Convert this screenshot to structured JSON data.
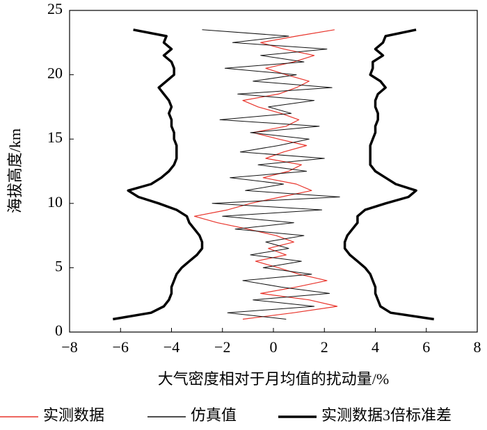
{
  "chart_data": {
    "type": "profile",
    "xlabel": "大气密度相对于月均值的扰动量/%",
    "ylabel": "海拔高度/km",
    "xlim": [
      -8,
      8
    ],
    "xticks": [
      {
        "value": -8,
        "label": "−8"
      },
      {
        "value": -6,
        "label": "−6"
      },
      {
        "value": -4,
        "label": "−4"
      },
      {
        "value": -2,
        "label": "−2"
      },
      0,
      2,
      4,
      6,
      8
    ],
    "ylim": [
      0,
      25
    ],
    "yticks": [
      0,
      5,
      10,
      15,
      20,
      25
    ],
    "y": [
      1,
      1.5,
      2,
      2.5,
      3,
      3.5,
      4,
      4.5,
      5,
      5.5,
      6,
      6.5,
      7,
      7.5,
      8,
      8.5,
      9,
      9.5,
      10,
      10.5,
      11,
      11.5,
      12,
      12.5,
      13,
      13.5,
      14,
      14.5,
      15,
      15.5,
      16,
      16.5,
      17,
      17.5,
      18,
      18.5,
      19,
      19.5,
      20,
      20.5,
      21,
      21.5,
      22,
      22.5,
      23,
      23.5
    ],
    "series": [
      {
        "name": "实测数据",
        "color": "#e8332a",
        "width": 1.2,
        "values": [
          -1.2,
          0.8,
          2.5,
          1.4,
          -0.5,
          0.9,
          2.1,
          1.0,
          0.2,
          -0.7,
          0.5,
          -0.2,
          0.8,
          0.1,
          -1.0,
          -2.2,
          -3.1,
          -1.8,
          -0.9,
          0.3,
          1.5,
          0.9,
          -0.4,
          0.6,
          1.1,
          -0.3,
          0.4,
          1.3,
          0.2,
          -0.8,
          0.5,
          1.0,
          0.3,
          -0.6,
          -1.2,
          0.2,
          0.9,
          1.4,
          0.5,
          -0.3,
          0.8,
          1.6,
          0.4,
          -0.5,
          0.9,
          2.4
        ]
      },
      {
        "name": "仿真值",
        "color": "#111111",
        "width": 1,
        "values": [
          0.5,
          -1.8,
          1.6,
          -0.8,
          2.2,
          0.3,
          -1.2,
          1.5,
          -0.4,
          1.1,
          -0.9,
          0.6,
          -0.3,
          1.2,
          -1.5,
          0.8,
          -2.0,
          1.9,
          -2.4,
          2.6,
          -1.1,
          0.4,
          -1.7,
          1.3,
          -0.6,
          2.0,
          -1.3,
          0.2,
          1.4,
          -0.9,
          1.8,
          -2.1,
          0.7,
          -0.2,
          1.6,
          -1.4,
          2.3,
          -0.8,
          0.9,
          -1.9,
          1.2,
          -0.5,
          2.1,
          -1.6,
          0.6,
          -2.8
        ]
      },
      {
        "name": "实测数据3倍标准差",
        "color": "#000000",
        "width": 3.5,
        "values": [
          6.3,
          4.6,
          4.2,
          4.1,
          4.0,
          4.0,
          3.9,
          3.8,
          3.6,
          3.3,
          3.0,
          2.8,
          2.8,
          2.9,
          3.1,
          3.3,
          3.3,
          3.6,
          4.4,
          5.3,
          5.6,
          4.8,
          4.4,
          4.0,
          3.8,
          3.8,
          3.8,
          3.8,
          3.9,
          4.0,
          4.0,
          4.1,
          4.1,
          4.0,
          4.0,
          4.1,
          4.4,
          4.2,
          3.8,
          3.9,
          3.9,
          4.3,
          4.0,
          4.3,
          4.4,
          5.6
        ],
        "lower_values": [
          -6.3,
          -4.8,
          -4.3,
          -4.1,
          -4.0,
          -4.0,
          -3.9,
          -3.8,
          -3.6,
          -3.3,
          -3.0,
          -2.8,
          -2.8,
          -2.9,
          -3.1,
          -3.3,
          -3.4,
          -3.8,
          -4.5,
          -5.3,
          -5.7,
          -4.8,
          -4.4,
          -4.1,
          -3.9,
          -3.8,
          -3.8,
          -3.8,
          -3.9,
          -3.9,
          -4.0,
          -4.0,
          -4.1,
          -4.0,
          -4.1,
          -4.3,
          -4.5,
          -4.2,
          -3.9,
          -3.9,
          -4.0,
          -4.3,
          -4.0,
          -4.3,
          -4.2,
          -5.5
        ]
      }
    ]
  }
}
